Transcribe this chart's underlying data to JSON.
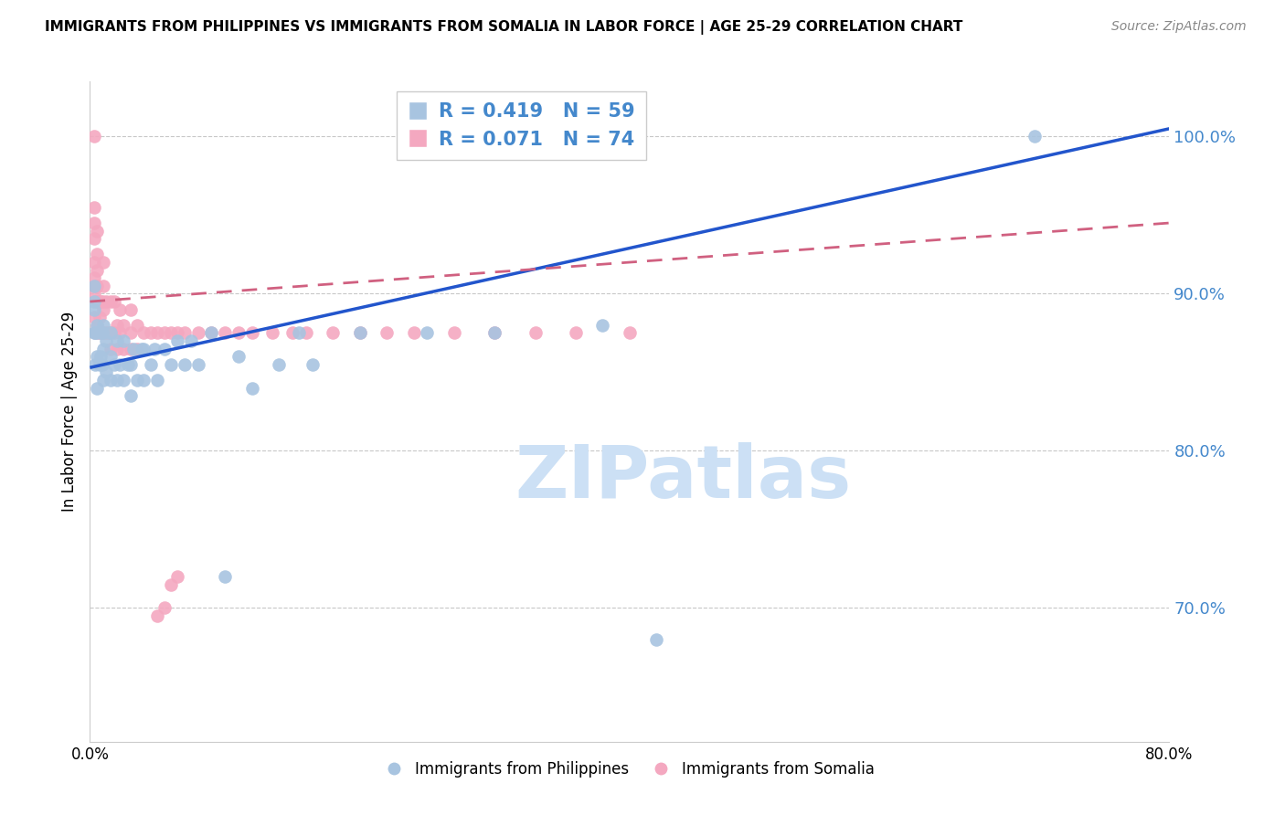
{
  "title": "IMMIGRANTS FROM PHILIPPINES VS IMMIGRANTS FROM SOMALIA IN LABOR FORCE | AGE 25-29 CORRELATION CHART",
  "source": "Source: ZipAtlas.com",
  "ylabel": "In Labor Force | Age 25-29",
  "ytick_labels": [
    "70.0%",
    "80.0%",
    "90.0%",
    "100.0%"
  ],
  "ytick_values": [
    0.7,
    0.8,
    0.9,
    1.0
  ],
  "xlim": [
    0.0,
    0.8
  ],
  "ylim": [
    0.615,
    1.035
  ],
  "philippines_R": 0.419,
  "philippines_N": 59,
  "somalia_R": 0.071,
  "somalia_N": 74,
  "philippines_color": "#a8c4e0",
  "somalia_color": "#f4a8c0",
  "philippines_line_color": "#2255cc",
  "somalia_line_color": "#d06080",
  "right_axis_color": "#4488cc",
  "watermark_text": "ZIPatlas",
  "watermark_color": "#cce0f5",
  "phil_line_x0": 0.0,
  "phil_line_y0": 0.853,
  "phil_line_x1": 0.8,
  "phil_line_y1": 1.005,
  "som_line_x0": 0.0,
  "som_line_y0": 0.895,
  "som_line_x1": 0.8,
  "som_line_y1": 0.945,
  "philippines_x": [
    0.003,
    0.003,
    0.003,
    0.003,
    0.004,
    0.004,
    0.005,
    0.005,
    0.005,
    0.005,
    0.007,
    0.008,
    0.008,
    0.009,
    0.009,
    0.01,
    0.01,
    0.01,
    0.012,
    0.012,
    0.015,
    0.015,
    0.015,
    0.018,
    0.02,
    0.02,
    0.022,
    0.025,
    0.025,
    0.028,
    0.03,
    0.03,
    0.032,
    0.035,
    0.038,
    0.04,
    0.04,
    0.045,
    0.048,
    0.05,
    0.055,
    0.06,
    0.065,
    0.07,
    0.075,
    0.08,
    0.09,
    0.1,
    0.11,
    0.12,
    0.14,
    0.155,
    0.165,
    0.2,
    0.25,
    0.3,
    0.38,
    0.42,
    0.7
  ],
  "philippines_y": [
    0.875,
    0.89,
    0.895,
    0.905,
    0.855,
    0.875,
    0.84,
    0.86,
    0.875,
    0.88,
    0.855,
    0.86,
    0.875,
    0.855,
    0.875,
    0.845,
    0.865,
    0.88,
    0.85,
    0.87,
    0.845,
    0.86,
    0.875,
    0.855,
    0.845,
    0.87,
    0.855,
    0.845,
    0.87,
    0.855,
    0.835,
    0.855,
    0.865,
    0.845,
    0.865,
    0.845,
    0.865,
    0.855,
    0.865,
    0.845,
    0.865,
    0.855,
    0.87,
    0.855,
    0.87,
    0.855,
    0.875,
    0.72,
    0.86,
    0.84,
    0.855,
    0.875,
    0.855,
    0.875,
    0.875,
    0.875,
    0.88,
    0.68,
    1.0
  ],
  "somalia_x": [
    0.003,
    0.003,
    0.003,
    0.003,
    0.003,
    0.003,
    0.003,
    0.003,
    0.004,
    0.004,
    0.005,
    0.005,
    0.005,
    0.005,
    0.005,
    0.005,
    0.006,
    0.006,
    0.007,
    0.008,
    0.008,
    0.009,
    0.009,
    0.01,
    0.01,
    0.01,
    0.01,
    0.012,
    0.012,
    0.013,
    0.015,
    0.015,
    0.015,
    0.018,
    0.018,
    0.02,
    0.02,
    0.022,
    0.022,
    0.025,
    0.025,
    0.03,
    0.03,
    0.03,
    0.035,
    0.035,
    0.04,
    0.045,
    0.05,
    0.055,
    0.06,
    0.065,
    0.07,
    0.08,
    0.09,
    0.1,
    0.11,
    0.12,
    0.135,
    0.15,
    0.16,
    0.18,
    0.2,
    0.22,
    0.24,
    0.27,
    0.3,
    0.33,
    0.36,
    0.4,
    0.05,
    0.055,
    0.06,
    0.065
  ],
  "somalia_y": [
    0.885,
    0.9,
    0.91,
    0.92,
    0.935,
    0.945,
    0.955,
    1.0,
    0.875,
    0.905,
    0.88,
    0.895,
    0.905,
    0.915,
    0.925,
    0.94,
    0.875,
    0.895,
    0.885,
    0.875,
    0.895,
    0.875,
    0.895,
    0.875,
    0.89,
    0.905,
    0.92,
    0.875,
    0.895,
    0.875,
    0.865,
    0.875,
    0.895,
    0.875,
    0.895,
    0.865,
    0.88,
    0.875,
    0.89,
    0.865,
    0.88,
    0.865,
    0.875,
    0.89,
    0.865,
    0.88,
    0.875,
    0.875,
    0.875,
    0.875,
    0.875,
    0.875,
    0.875,
    0.875,
    0.875,
    0.875,
    0.875,
    0.875,
    0.875,
    0.875,
    0.875,
    0.875,
    0.875,
    0.875,
    0.875,
    0.875,
    0.875,
    0.875,
    0.875,
    0.875,
    0.695,
    0.7,
    0.715,
    0.72
  ]
}
